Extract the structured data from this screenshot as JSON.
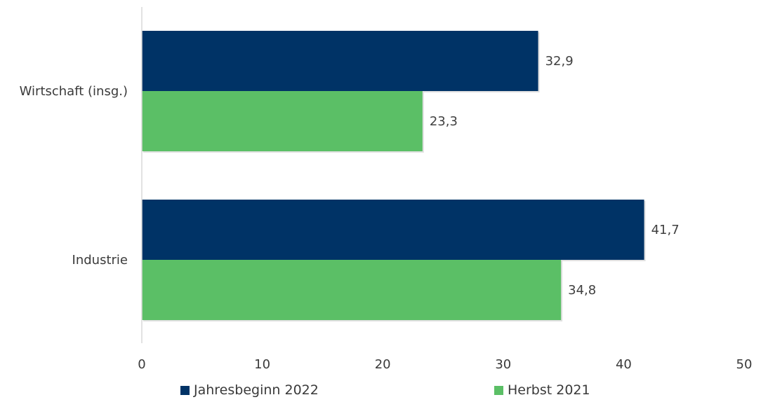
{
  "chart_data": {
    "type": "bar",
    "orientation": "horizontal",
    "categories": [
      "Wirtschaft (insg.)",
      "Industrie"
    ],
    "series": [
      {
        "name": "Jahresbeginn 2022",
        "values": [
          32.9,
          41.7
        ],
        "labels": [
          "32,9",
          "41,7"
        ],
        "color": "#003366"
      },
      {
        "name": "Herbst 2021",
        "values": [
          23.3,
          34.8
        ],
        "labels": [
          "23,3",
          "34,8"
        ],
        "color": "#5bbf66"
      }
    ],
    "xlim": [
      0,
      50
    ],
    "xticks": [
      0,
      10,
      20,
      30,
      40,
      50
    ],
    "grid": false,
    "legend_position": "bottom"
  }
}
